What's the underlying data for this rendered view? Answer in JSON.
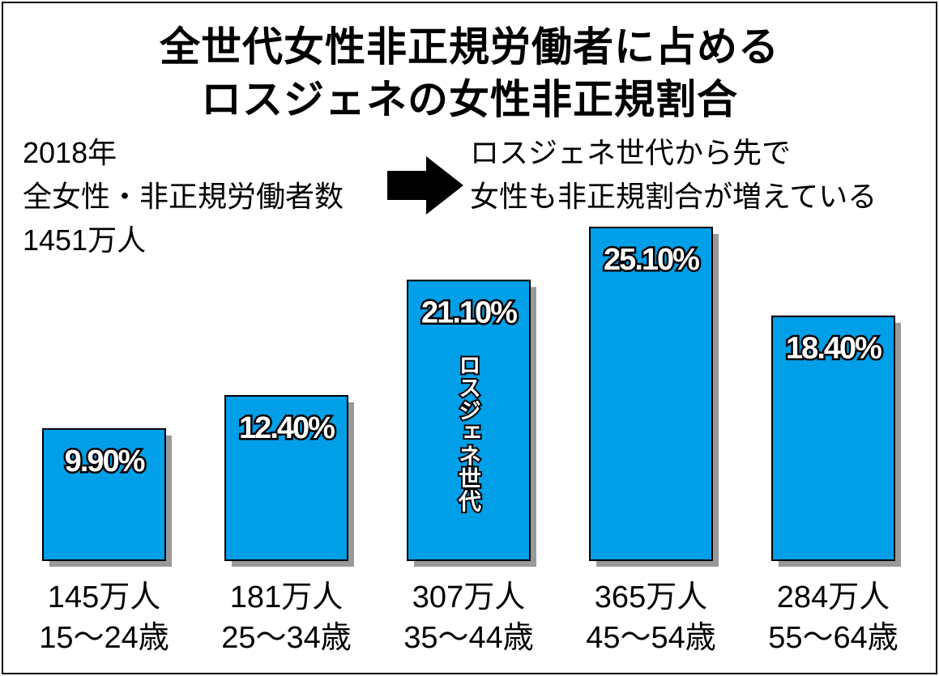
{
  "chart_data": {
    "type": "bar",
    "title": "全世代女性非正規労働者に占める",
    "subtitle": "ロスジェネの女性非正規割合",
    "categories": [
      "15〜24歳",
      "25〜34歳",
      "35〜44歳",
      "45〜54歳",
      "55〜64歳"
    ],
    "counts": [
      "145万人",
      "181万人",
      "307万人",
      "365万人",
      "284万人"
    ],
    "values": [
      9.9,
      12.4,
      21.1,
      25.1,
      18.4
    ],
    "value_labels": [
      "9.90%",
      "12.40%",
      "21.10%",
      "25.10%",
      "18.40%"
    ],
    "annotation": "ロスジェネ世代",
    "annotation_index": 2,
    "xlabel": "",
    "ylabel": "",
    "ylim": [
      0,
      25.1
    ],
    "grid": false,
    "bar_color": "#009fe8"
  },
  "notes": {
    "left": [
      "2018年",
      "全女性・非正規労働者数",
      "1451万人"
    ],
    "right": [
      "ロスジェネ世代から先で",
      "女性も非正規割合が増えている"
    ]
  }
}
